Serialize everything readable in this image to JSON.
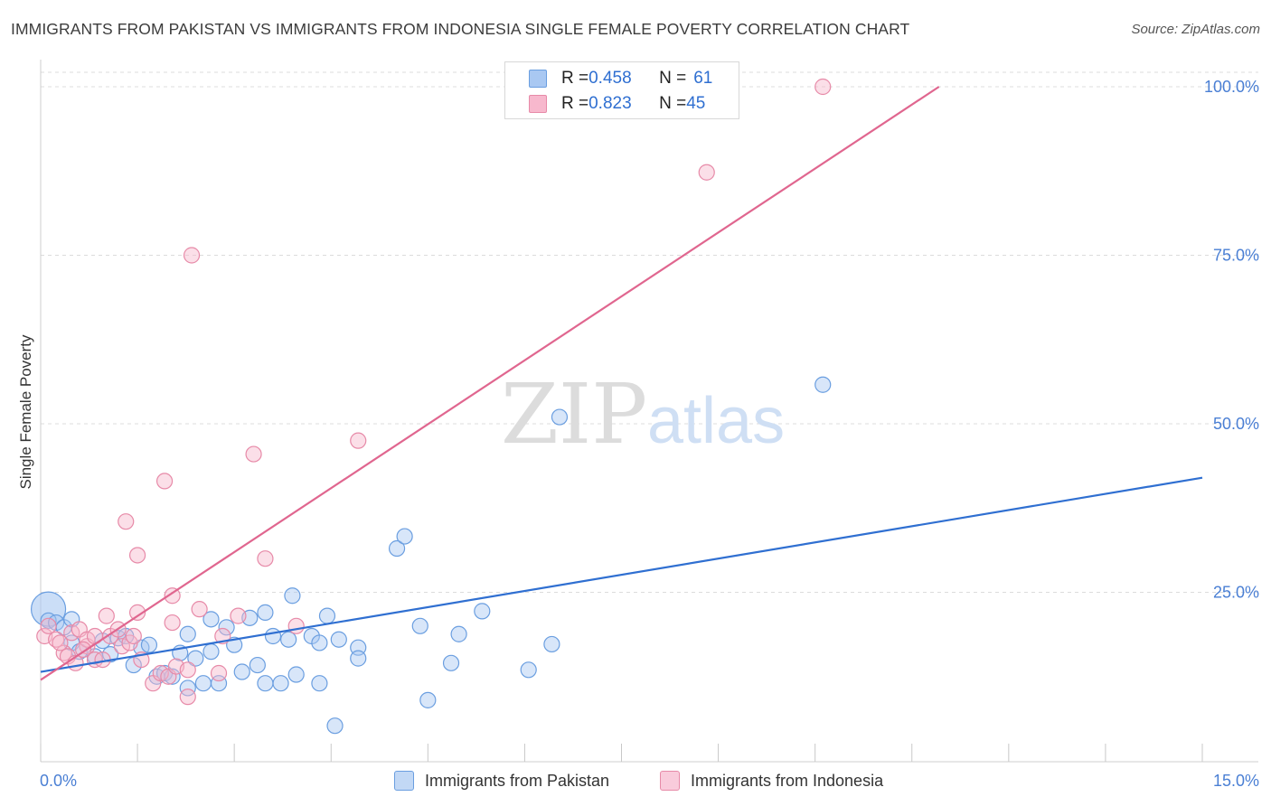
{
  "title": "IMMIGRANTS FROM PAKISTAN VS IMMIGRANTS FROM INDONESIA SINGLE FEMALE POVERTY CORRELATION CHART",
  "source": "Source: ZipAtlas.com",
  "watermark": {
    "zip": "ZIP",
    "atlas": "atlas"
  },
  "legend": {
    "rows": [
      {
        "r_label": "R = ",
        "r_value": "0.458",
        "n_label": "N = ",
        "n_value": "61"
      },
      {
        "r_label": "R = ",
        "r_value": "0.823",
        "n_label": "N = ",
        "n_value": "45"
      }
    ]
  },
  "bottom_legend": {
    "pakistan": "Immigrants from Pakistan",
    "indonesia": "Immigrants from Indonesia"
  },
  "colors": {
    "pakistan_fill": "#a9c8f2",
    "pakistan_stroke": "#6a9ee0",
    "pakistan_line": "#2f6fd1",
    "indonesia_fill": "#f7b8cd",
    "indonesia_stroke": "#e78aa8",
    "indonesia_line": "#e0668f",
    "grid": "#dcdcdc",
    "tick_text": "#4a7fd4"
  },
  "chart_data": {
    "type": "scatter",
    "title": "IMMIGRANTS FROM PAKISTAN VS IMMIGRANTS FROM INDONESIA SINGLE FEMALE POVERTY CORRELATION CHART",
    "xlabel": "",
    "ylabel": "Single Female Poverty",
    "xlim": [
      0,
      15
    ],
    "ylim": [
      0,
      100
    ],
    "x_tick_labels": [
      "0.0%",
      "15.0%"
    ],
    "y_ticks": [
      25,
      50,
      75,
      100
    ],
    "y_tick_labels": [
      "25.0%",
      "50.0%",
      "75.0%",
      "100.0%"
    ],
    "series": [
      {
        "name": "Immigrants from Pakistan",
        "R": 0.458,
        "N": 61,
        "trend": {
          "x": [
            0,
            15
          ],
          "y": [
            13.2,
            42.0
          ]
        },
        "points": [
          [
            0.1,
            22.5
          ],
          [
            0.1,
            20.8
          ],
          [
            0.2,
            20.5
          ],
          [
            0.3,
            19.8
          ],
          [
            0.4,
            21.0
          ],
          [
            0.4,
            17.5
          ],
          [
            0.5,
            16.2
          ],
          [
            0.7,
            15.5
          ],
          [
            0.8,
            17.8
          ],
          [
            0.9,
            15.8
          ],
          [
            1.0,
            18.2
          ],
          [
            1.1,
            18.5
          ],
          [
            1.2,
            14.2
          ],
          [
            1.3,
            16.8
          ],
          [
            1.4,
            17.2
          ],
          [
            1.5,
            12.5
          ],
          [
            1.6,
            13.0
          ],
          [
            1.7,
            12.5
          ],
          [
            1.8,
            16.0
          ],
          [
            1.9,
            10.8
          ],
          [
            1.9,
            18.8
          ],
          [
            2.0,
            15.2
          ],
          [
            2.1,
            11.5
          ],
          [
            2.2,
            16.2
          ],
          [
            2.2,
            21.0
          ],
          [
            2.3,
            11.5
          ],
          [
            2.4,
            19.8
          ],
          [
            2.5,
            17.2
          ],
          [
            2.6,
            13.2
          ],
          [
            2.7,
            21.2
          ],
          [
            2.8,
            14.2
          ],
          [
            2.9,
            11.5
          ],
          [
            2.9,
            22.0
          ],
          [
            3.0,
            18.5
          ],
          [
            3.1,
            11.5
          ],
          [
            3.2,
            18.0
          ],
          [
            3.25,
            24.5
          ],
          [
            3.3,
            12.8
          ],
          [
            3.5,
            18.5
          ],
          [
            3.6,
            11.5
          ],
          [
            3.6,
            17.5
          ],
          [
            3.7,
            21.5
          ],
          [
            3.8,
            5.2
          ],
          [
            3.85,
            18.0
          ],
          [
            4.1,
            16.8
          ],
          [
            4.1,
            15.2
          ],
          [
            4.6,
            31.5
          ],
          [
            4.7,
            33.3
          ],
          [
            4.9,
            20.0
          ],
          [
            5.0,
            9.0
          ],
          [
            5.3,
            14.5
          ],
          [
            5.4,
            18.8
          ],
          [
            5.7,
            22.2
          ],
          [
            6.3,
            13.5
          ],
          [
            6.6,
            17.3
          ],
          [
            6.7,
            51.0
          ],
          [
            10.1,
            55.8
          ]
        ]
      },
      {
        "name": "Immigrants from Indonesia",
        "R": 0.823,
        "N": 45,
        "trend": {
          "x": [
            0,
            11.6
          ],
          "y": [
            12.0,
            100.0
          ]
        },
        "points": [
          [
            0.05,
            18.5
          ],
          [
            0.1,
            20.0
          ],
          [
            0.2,
            18.0
          ],
          [
            0.3,
            16.0
          ],
          [
            0.35,
            15.5
          ],
          [
            0.4,
            19.0
          ],
          [
            0.45,
            14.5
          ],
          [
            0.5,
            19.5
          ],
          [
            0.6,
            17.0
          ],
          [
            0.6,
            18.0
          ],
          [
            0.7,
            18.5
          ],
          [
            0.7,
            15.0
          ],
          [
            0.8,
            15.0
          ],
          [
            0.85,
            21.5
          ],
          [
            0.9,
            18.5
          ],
          [
            1.0,
            19.5
          ],
          [
            1.05,
            17.0
          ],
          [
            1.1,
            35.5
          ],
          [
            1.15,
            17.5
          ],
          [
            1.2,
            18.5
          ],
          [
            1.25,
            30.5
          ],
          [
            1.25,
            22.0
          ],
          [
            1.3,
            15.0
          ],
          [
            1.45,
            11.5
          ],
          [
            1.55,
            13.0
          ],
          [
            1.6,
            41.5
          ],
          [
            1.65,
            12.5
          ],
          [
            1.7,
            24.5
          ],
          [
            1.7,
            20.5
          ],
          [
            1.75,
            14.0
          ],
          [
            1.9,
            13.5
          ],
          [
            1.9,
            9.5
          ],
          [
            1.95,
            75.0
          ],
          [
            2.05,
            22.5
          ],
          [
            2.3,
            13.0
          ],
          [
            2.35,
            18.5
          ],
          [
            2.55,
            21.5
          ],
          [
            2.75,
            45.5
          ],
          [
            2.9,
            30.0
          ],
          [
            3.3,
            20.0
          ],
          [
            4.1,
            47.5
          ],
          [
            8.6,
            87.3
          ],
          [
            10.1,
            100.0
          ],
          [
            0.25,
            17.5
          ],
          [
            0.55,
            16.5
          ]
        ]
      }
    ]
  }
}
